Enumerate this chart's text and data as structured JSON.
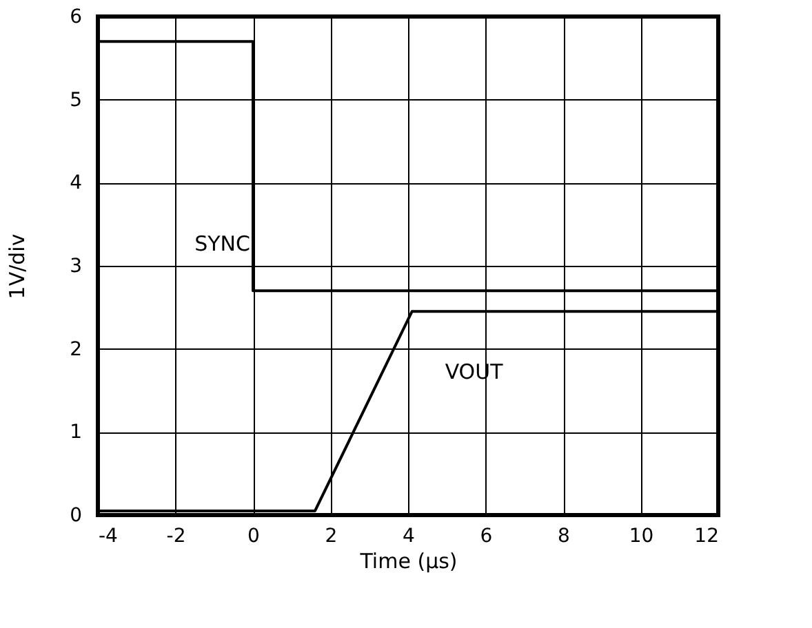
{
  "chart_data": {
    "type": "line",
    "xlabel": "Time (µs)",
    "ylabel": "1V/div",
    "xlim": [
      -4,
      12
    ],
    "xticks": [
      -4,
      -2,
      0,
      2,
      4,
      6,
      8,
      10,
      12
    ],
    "ylim": [
      0,
      6
    ],
    "yticks": [
      0,
      1,
      2,
      3,
      4,
      5,
      6
    ],
    "grid": true,
    "marker": "none",
    "line_style": "solid",
    "series": [
      {
        "name": "SYNC",
        "color": "#000000",
        "x": [
          -4,
          0,
          0,
          0.05,
          12
        ],
        "values": [
          5.7,
          5.7,
          2.7,
          2.7,
          2.7
        ]
      },
      {
        "name": "VOUT",
        "color": "#000000",
        "x": [
          -4,
          1.6,
          4.1,
          12
        ],
        "values": [
          0.05,
          0.05,
          2.45,
          2.45
        ]
      }
    ]
  }
}
